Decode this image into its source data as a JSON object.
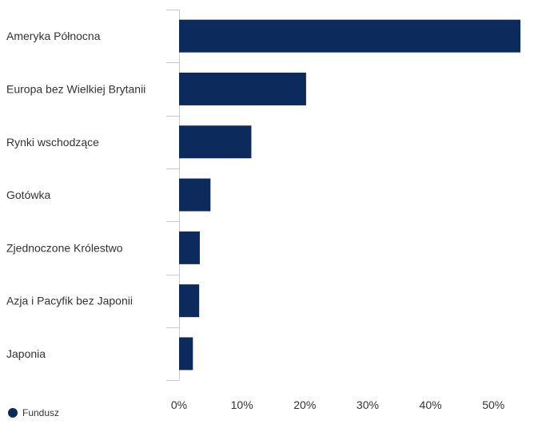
{
  "chart_data": {
    "type": "bar",
    "orientation": "horizontal",
    "categories": [
      "Ameryka Północna",
      "Europa bez Wielkiej Brytanii",
      "Rynki wschodzące",
      "Gotówka",
      "Zjednoczone Królestwo",
      "Azja i Pacyfik bez Japonii",
      "Japonia"
    ],
    "series": [
      {
        "name": "Fundusz",
        "color": "#0d2a5c",
        "values": [
          54.3,
          20.2,
          11.5,
          5.0,
          3.3,
          3.2,
          2.2
        ]
      }
    ],
    "xlim": [
      0,
      59
    ],
    "xticks": [
      0,
      10,
      20,
      30,
      40,
      50
    ],
    "xtick_labels": [
      "0%",
      "10%",
      "20%",
      "30%",
      "40%",
      "50%"
    ],
    "grid": false,
    "legend_position": "bottom-left"
  }
}
